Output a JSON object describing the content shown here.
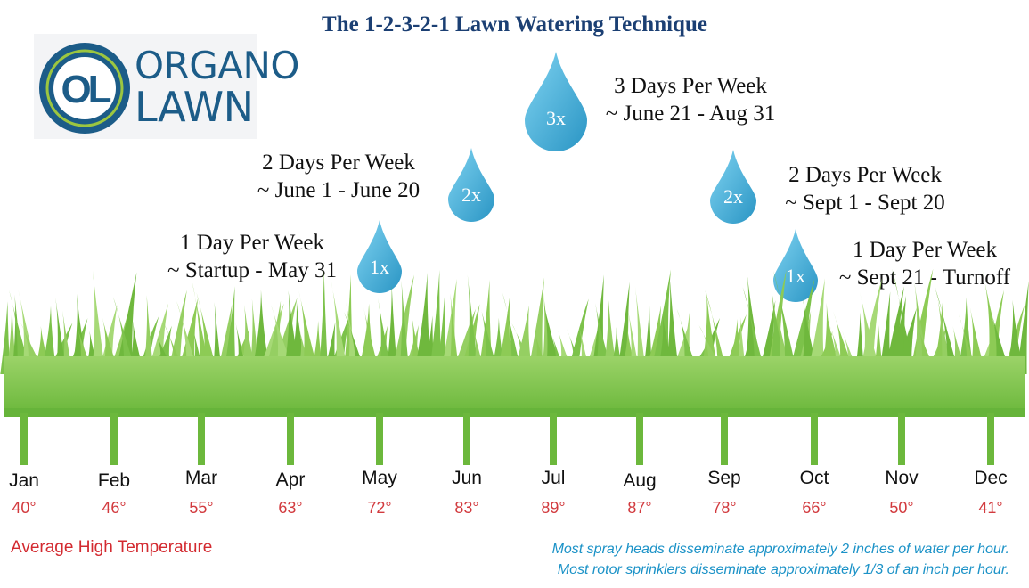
{
  "title": "The 1-2-3-2-1 Lawn Watering Technique",
  "logo": {
    "monogram": "OL",
    "line1": "ORGANO",
    "line2": "LAWN"
  },
  "colors": {
    "title": "#1b3f73",
    "grass": "#7cc24a",
    "drop": "#48b3dc",
    "temp": "#d23a3e",
    "note": "#1b92c7"
  },
  "schedule": [
    {
      "freq": "1x",
      "line1": "1 Day Per Week",
      "line2": "~ Startup - May 31"
    },
    {
      "freq": "2x",
      "line1": "2 Days Per Week",
      "line2": "~ June 1 - June 20"
    },
    {
      "freq": "3x",
      "line1": "3 Days Per Week",
      "line2": "~ June 21 - Aug 31"
    },
    {
      "freq": "2x",
      "line1": "2 Days Per Week",
      "line2": "~ Sept 1 - Sept 20"
    },
    {
      "freq": "1x",
      "line1": "1 Day Per Week",
      "line2": "~ Sept 21 - Turnoff"
    }
  ],
  "months": [
    {
      "name": "Jan",
      "temp": "40°"
    },
    {
      "name": "Feb",
      "temp": "46°"
    },
    {
      "name": "Mar",
      "temp": "55°"
    },
    {
      "name": "Apr",
      "temp": "63°"
    },
    {
      "name": "May",
      "temp": "72°"
    },
    {
      "name": "Jun",
      "temp": "83°"
    },
    {
      "name": "Jul",
      "temp": "89°"
    },
    {
      "name": "Aug",
      "temp": "87°"
    },
    {
      "name": "Sep",
      "temp": "78°"
    },
    {
      "name": "Oct",
      "temp": "66°"
    },
    {
      "name": "Nov",
      "temp": "50°"
    },
    {
      "name": "Dec",
      "temp": "41°"
    }
  ],
  "legend": "Average High Temperature",
  "notes": [
    "Most spray heads disseminate approximately 2 inches of water per hour.",
    "Most rotor sprinklers disseminate approximately 1/3 of an inch per hour."
  ]
}
